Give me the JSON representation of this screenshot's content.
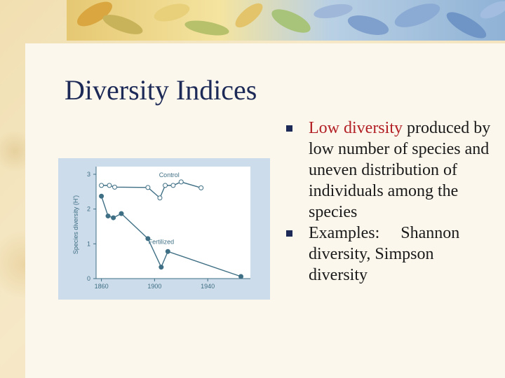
{
  "slide": {
    "title": "Diversity Indices",
    "bullets": [
      {
        "lead": "Low diversity",
        "rest": " produced by low number of species and uneven distribution of individuals among the species"
      },
      {
        "lead": "",
        "rest": "Examples:     Shannon diversity, Simpson diversity"
      }
    ],
    "colors": {
      "title": "#1d2a57",
      "accent": "#b21f24",
      "figure_bg": "#cddceb",
      "line": "#3f6f84"
    }
  },
  "chart_data": {
    "type": "line",
    "xlabel": "",
    "ylabel": "Species diversity (H')",
    "xlim": [
      1856,
      1970
    ],
    "ylim": [
      0,
      3.1
    ],
    "x_ticks": [
      "1860",
      "1900",
      "1940"
    ],
    "y_ticks": [
      "0",
      "1",
      "2",
      "3"
    ],
    "series": [
      {
        "name": "Control",
        "marker": "open",
        "x": [
          1860,
          1866,
          1870,
          1895,
          1904,
          1908,
          1914,
          1920,
          1935
        ],
        "y": [
          2.68,
          2.68,
          2.63,
          2.62,
          2.32,
          2.68,
          2.68,
          2.78,
          2.61
        ]
      },
      {
        "name": "Fertilized",
        "marker": "filled",
        "x": [
          1860,
          1865,
          1869,
          1875,
          1895,
          1905,
          1910,
          1965
        ],
        "y": [
          2.37,
          1.8,
          1.75,
          1.87,
          1.15,
          0.33,
          0.78,
          0.06
        ]
      }
    ]
  }
}
